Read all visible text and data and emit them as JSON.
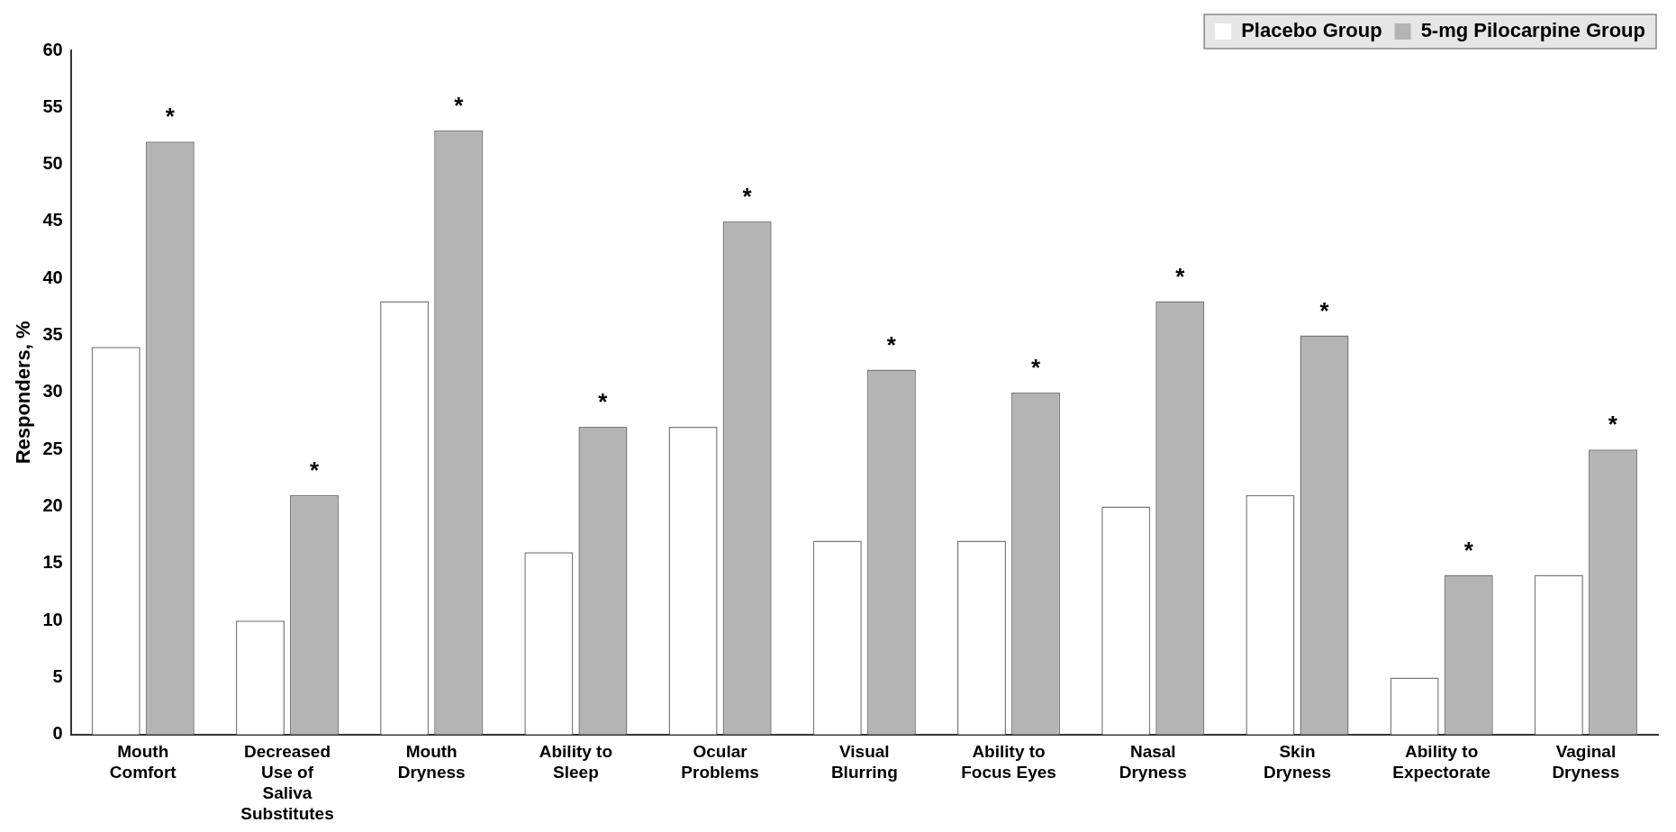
{
  "chart_data": {
    "type": "bar",
    "ylabel": "Responders, %",
    "categories": [
      "Mouth Comfort",
      "Decreased Use of Saliva Substitutes",
      "Mouth Dryness",
      "Ability to Sleep",
      "Ocular Problems",
      "Visual Blurring",
      "Ability to Focus Eyes",
      "Nasal Dryness",
      "Skin Dryness",
      "Ability to Expectorate",
      "Vaginal Dryness"
    ],
    "series": [
      {
        "name": "Placebo Group",
        "color": "#ffffff",
        "values": [
          34,
          10,
          38,
          16,
          27,
          17,
          17,
          20,
          21,
          5,
          14
        ]
      },
      {
        "name": "5-mg Pilocarpine Group",
        "color": "#b4b4b4",
        "values": [
          52,
          21,
          53,
          27,
          45,
          32,
          30,
          38,
          35,
          14,
          25
        ]
      }
    ],
    "ylim": [
      0,
      60
    ],
    "yticks": [
      0,
      5,
      10,
      15,
      20,
      25,
      30,
      35,
      40,
      45,
      50,
      55,
      60
    ],
    "grid": false,
    "legend": "top right",
    "annotations": [
      "*",
      "*",
      "*",
      "*",
      "*",
      "*",
      "*",
      "*",
      "*",
      "*",
      "*"
    ]
  }
}
